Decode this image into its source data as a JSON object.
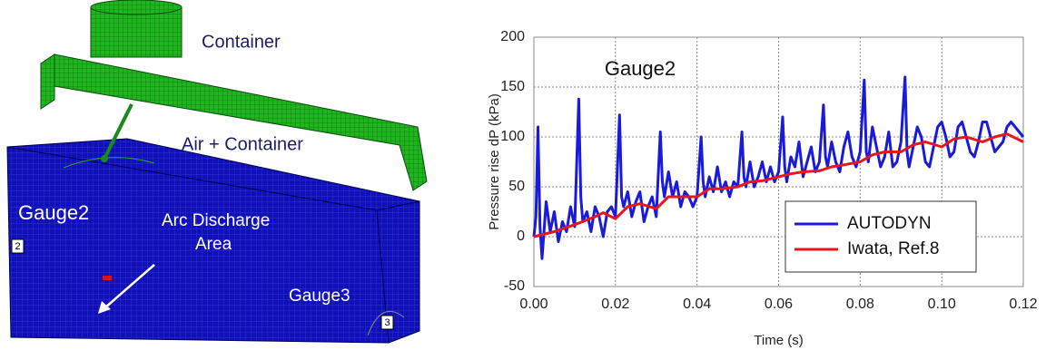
{
  "diagram": {
    "labels": {
      "container": "Container",
      "air": "Air + Container",
      "gauge2": "Gauge2",
      "arc": [
        "Arc Discharge",
        "Area"
      ],
      "gauge3": "Gauge3",
      "marker2": "2",
      "marker3": "3"
    }
  },
  "chart_data": {
    "type": "line",
    "title": "Gauge2",
    "xlabel": "Time (s)",
    "ylabel": "Pressure rise dP (kPa)",
    "xlim": [
      0,
      0.12
    ],
    "ylim": [
      -50,
      200
    ],
    "xticks": [
      {
        "value": 0,
        "label": "0.00"
      },
      {
        "value": 0.02,
        "label": "0.02"
      },
      {
        "value": 0.04,
        "label": "0.04"
      },
      {
        "value": 0.06,
        "label": "0.06"
      },
      {
        "value": 0.08,
        "label": "0.08"
      },
      {
        "value": 0.1,
        "label": "0.10"
      },
      {
        "value": 0.12,
        "label": "0.12"
      }
    ],
    "yticks": [
      -50,
      0,
      50,
      100,
      150,
      200
    ],
    "grid": true,
    "legend": "lower right",
    "series": [
      {
        "name": "AUTODYN",
        "color": "#1a1adb",
        "x": [
          0,
          0.0005,
          0.001,
          0.0015,
          0.002,
          0.003,
          0.004,
          0.005,
          0.006,
          0.007,
          0.008,
          0.009,
          0.01,
          0.011,
          0.0115,
          0.012,
          0.013,
          0.014,
          0.015,
          0.016,
          0.017,
          0.018,
          0.019,
          0.02,
          0.021,
          0.0215,
          0.022,
          0.023,
          0.024,
          0.025,
          0.026,
          0.027,
          0.028,
          0.029,
          0.03,
          0.031,
          0.0315,
          0.032,
          0.033,
          0.034,
          0.035,
          0.036,
          0.037,
          0.038,
          0.039,
          0.04,
          0.041,
          0.0415,
          0.042,
          0.043,
          0.044,
          0.045,
          0.046,
          0.047,
          0.048,
          0.049,
          0.05,
          0.051,
          0.0515,
          0.052,
          0.053,
          0.054,
          0.055,
          0.056,
          0.057,
          0.058,
          0.059,
          0.06,
          0.061,
          0.0615,
          0.062,
          0.063,
          0.064,
          0.065,
          0.066,
          0.067,
          0.068,
          0.069,
          0.07,
          0.071,
          0.0715,
          0.072,
          0.073,
          0.074,
          0.075,
          0.076,
          0.077,
          0.078,
          0.079,
          0.08,
          0.081,
          0.0815,
          0.082,
          0.083,
          0.084,
          0.085,
          0.086,
          0.087,
          0.088,
          0.089,
          0.09,
          0.091,
          0.0915,
          0.092,
          0.093,
          0.094,
          0.095,
          0.096,
          0.097,
          0.098,
          0.099,
          0.1,
          0.101,
          0.102,
          0.103,
          0.104,
          0.105,
          0.106,
          0.107,
          0.108,
          0.109,
          0.11,
          0.111,
          0.112,
          0.113,
          0.115,
          0.116,
          0.117,
          0.118,
          0.119,
          0.12
        ],
        "values": [
          0,
          20,
          110,
          10,
          -22,
          35,
          5,
          25,
          -5,
          15,
          5,
          30,
          10,
          138,
          40,
          15,
          25,
          5,
          30,
          20,
          0,
          25,
          30,
          20,
          122,
          40,
          30,
          45,
          20,
          35,
          45,
          15,
          30,
          40,
          20,
          105,
          55,
          40,
          65,
          40,
          55,
          30,
          45,
          40,
          30,
          40,
          100,
          55,
          40,
          60,
          45,
          70,
          45,
          55,
          40,
          55,
          50,
          105,
          60,
          50,
          75,
          50,
          60,
          75,
          55,
          70,
          55,
          65,
          120,
          70,
          55,
          80,
          70,
          95,
          60,
          75,
          90,
          65,
          75,
          132,
          80,
          70,
          95,
          75,
          65,
          90,
          105,
          80,
          70,
          85,
          157,
          85,
          75,
          110,
          90,
          70,
          80,
          105,
          70,
          75,
          95,
          160,
          85,
          70,
          90,
          110,
          100,
          75,
          70,
          90,
          110,
          115,
          100,
          80,
          85,
          110,
          115,
          100,
          85,
          80,
          95,
          115,
          115,
          100,
          85,
          95,
          110,
          115,
          110,
          105,
          100
        ]
      },
      {
        "name": "Iwata, Ref.8",
        "color": "#e8161b",
        "x": [
          0,
          0.005,
          0.01,
          0.015,
          0.017,
          0.02,
          0.023,
          0.026,
          0.03,
          0.033,
          0.036,
          0.04,
          0.043,
          0.046,
          0.05,
          0.053,
          0.056,
          0.06,
          0.063,
          0.066,
          0.07,
          0.073,
          0.076,
          0.08,
          0.083,
          0.086,
          0.09,
          0.093,
          0.096,
          0.1,
          0.103,
          0.106,
          0.11,
          0.113,
          0.116,
          0.12
        ],
        "values": [
          0,
          5,
          12,
          20,
          24,
          18,
          30,
          33,
          28,
          40,
          40,
          40,
          48,
          48,
          50,
          55,
          56,
          60,
          63,
          65,
          66,
          70,
          72,
          75,
          82,
          85,
          85,
          92,
          95,
          90,
          98,
          100,
          95,
          100,
          103,
          95
        ]
      }
    ]
  }
}
